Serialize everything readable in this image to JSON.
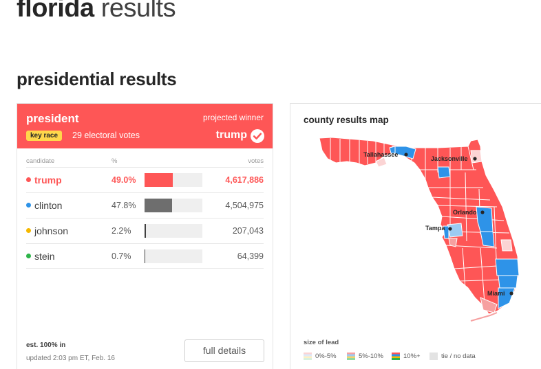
{
  "page": {
    "title_bold": "florida",
    "title_light": "results"
  },
  "section": {
    "title": "presidential results"
  },
  "race": {
    "title": "president",
    "key_badge": "key race",
    "electoral_votes": "29 electoral votes",
    "projected_label": "projected winner",
    "winner": "trump",
    "winner_color": "#fe5656",
    "columns": {
      "candidate": "candidate",
      "pct": "%",
      "votes": "votes"
    },
    "candidates": [
      {
        "name": "trump",
        "pct": "49.0%",
        "pct_value": 49.0,
        "votes": "4,617,886",
        "color": "#fe5656",
        "bar_color": "#fe5656"
      },
      {
        "name": "clinton",
        "pct": "47.8%",
        "pct_value": 47.8,
        "votes": "4,504,975",
        "color": "#2e93e8",
        "bar_color": "#6e6e6e"
      },
      {
        "name": "johnson",
        "pct": "2.2%",
        "pct_value": 2.2,
        "votes": "207,043",
        "color": "#f5b800",
        "bar_color": "#404040"
      },
      {
        "name": "stein",
        "pct": "0.7%",
        "pct_value": 0.7,
        "votes": "64,399",
        "color": "#2db44a",
        "bar_color": "#404040"
      }
    ],
    "est_in": "est. 100% in",
    "updated": "updated 2:03 pm ET, Feb. 16",
    "full_details_label": "full details"
  },
  "map": {
    "title": "county results map",
    "cities": [
      "Tallahassee",
      "Jacksonville",
      "Orlando",
      "Tampa",
      "Miami"
    ],
    "colors": {
      "rep": "#fe5656",
      "dem": "#2e93e8",
      "rep_light": "#f6a0a0",
      "dem_light": "#9ccbf2",
      "rep_faint": "#fbd4d4"
    },
    "legend_title": "size of lead",
    "legend": [
      {
        "label": "0%-5%",
        "colors": [
          "#fbd4d4",
          "#dfe9f7",
          "#fdf0c4",
          "#d9f1de"
        ]
      },
      {
        "label": "5%-10%",
        "colors": [
          "#f6a0a0",
          "#9ccbf2",
          "#f5d36a",
          "#8fd9a0"
        ]
      },
      {
        "label": "10%+",
        "colors": [
          "#fe5656",
          "#2e93e8",
          "#f5b800",
          "#2db44a"
        ]
      },
      {
        "label": "tie / no data",
        "colors": [
          "#e3e3e3"
        ]
      }
    ]
  }
}
